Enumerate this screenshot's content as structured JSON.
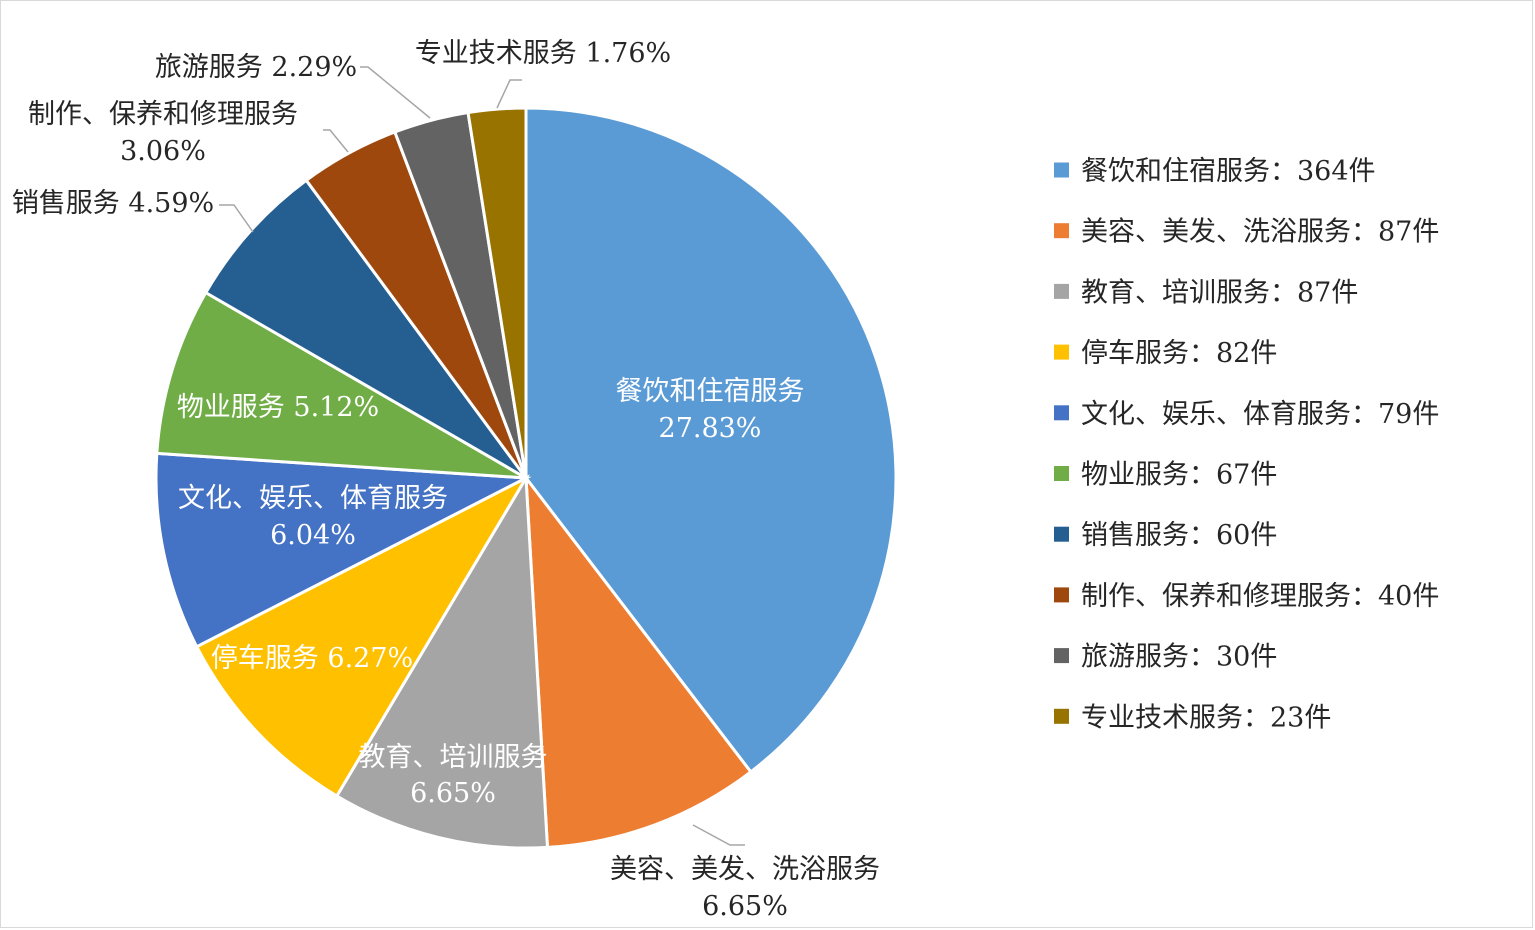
{
  "chart_data": {
    "type": "pie",
    "legend_position": "right",
    "slices": [
      {
        "name": "餐饮和住宿服务",
        "count": 364,
        "percent": "27.83%",
        "legend_label": "餐饮和住宿服务：364件",
        "color": "#5b9bd5"
      },
      {
        "name": "美容、美发、洗浴服务",
        "count": 87,
        "percent": "6.65%",
        "legend_label": "美容、美发、洗浴服务：87件",
        "color": "#ed7d31"
      },
      {
        "name": "教育、培训服务",
        "count": 87,
        "percent": "6.65%",
        "legend_label": "教育、培训服务：87件",
        "color": "#a5a5a5"
      },
      {
        "name": "停车服务",
        "count": 82,
        "percent": "6.27%",
        "legend_label": "停车服务：82件",
        "color": "#ffc000"
      },
      {
        "name": "文化、娱乐、体育服务",
        "count": 79,
        "percent": "6.04%",
        "legend_label": "文化、娱乐、体育服务：79件",
        "color": "#4472c4"
      },
      {
        "name": "物业服务",
        "count": 67,
        "percent": "5.12%",
        "legend_label": "物业服务：67件",
        "color": "#70ad47"
      },
      {
        "name": "销售服务",
        "count": 60,
        "percent": "4.59%",
        "legend_label": "销售服务：60件",
        "color": "#255e91"
      },
      {
        "name": "制作、保养和修理服务",
        "count": 40,
        "percent": "3.06%",
        "legend_label": "制作、保养和修理服务：40件",
        "color": "#9e480e"
      },
      {
        "name": "旅游服务",
        "count": 30,
        "percent": "2.29%",
        "legend_label": "旅游服务：30件",
        "color": "#636363"
      },
      {
        "name": "专业技术服务",
        "count": 23,
        "percent": "1.76%",
        "legend_label": "专业技术服务：23件",
        "color": "#997300"
      }
    ]
  }
}
